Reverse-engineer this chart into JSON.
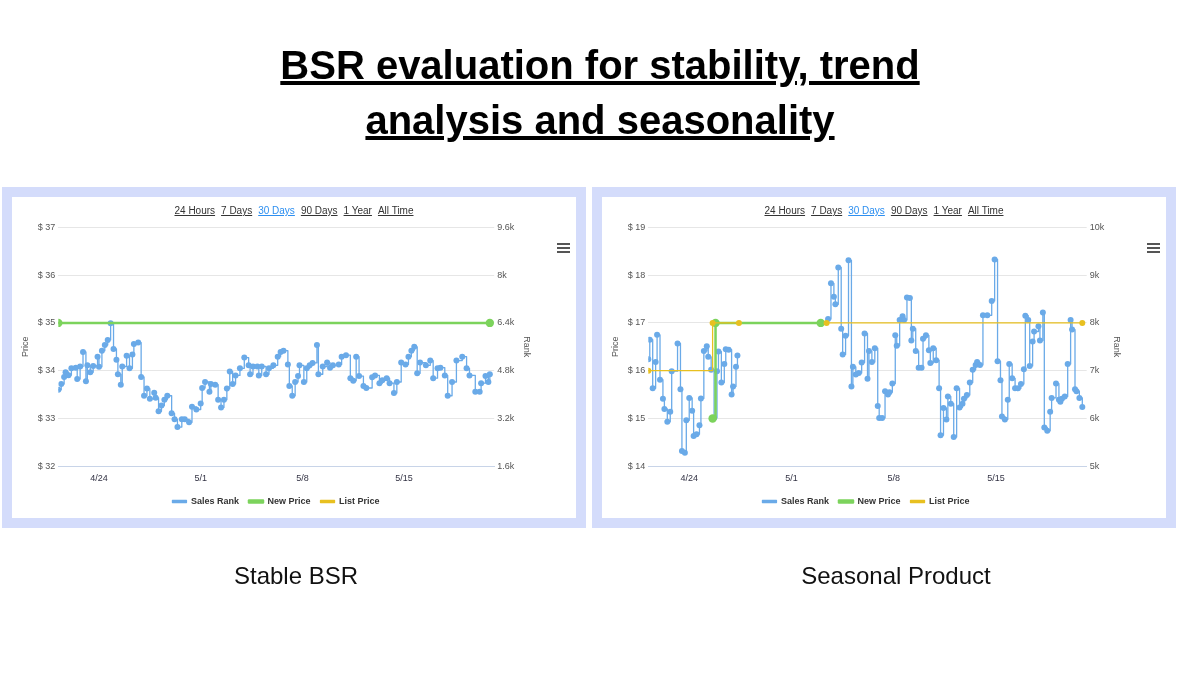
{
  "chart_data": [
    {
      "type": "step",
      "title": "BSR evaluation for stability, trend analysis and seasonality",
      "subtitle": "Stable BSR",
      "annotations": [
        "24 Hours",
        "7 Days",
        "30 Days",
        "90 Days",
        "1 Year",
        "All Time"
      ],
      "ylabel": "Price",
      "y2label": "Rank",
      "xlim": [
        "--04-21T04:48",
        "--05-21T04:48"
      ],
      "xticks": [
        {
          "value": "--04-24",
          "label": "4/24"
        },
        {
          "value": "--05-01",
          "label": "5/1"
        },
        {
          "value": "--05-08",
          "label": "5/8"
        },
        {
          "value": "--05-15",
          "label": "5/15"
        }
      ],
      "ylim": [
        32,
        37
      ],
      "yticks": [
        {
          "value": 32,
          "label": "$ 32"
        },
        {
          "value": 33,
          "label": "$ 33"
        },
        {
          "value": 34,
          "label": "$ 34"
        },
        {
          "value": 35,
          "label": "$ 35"
        },
        {
          "value": 36,
          "label": "$ 36"
        },
        {
          "value": 37,
          "label": "$ 37"
        }
      ],
      "y2lim": [
        1600,
        9600
      ],
      "y2ticks": [
        {
          "value": 1600,
          "label": "1.6k"
        },
        {
          "value": 3200,
          "label": "3.2k"
        },
        {
          "value": 4800,
          "label": "4.8k"
        },
        {
          "value": 6400,
          "label": "6.4k"
        },
        {
          "value": 8000,
          "label": "8k"
        },
        {
          "value": 9600,
          "label": "9.6k"
        }
      ],
      "grid": "y",
      "legend": "bottom",
      "marker": "circle",
      "series": [
        {
          "name": "Sales Rank",
          "color": "#6aaae8",
          "axis": "y2",
          "x": [
            "--04-21T04:48",
            "--04-21T09:36",
            "--04-21T14:24",
            "--04-21T16:48",
            "--04-21T21:36",
            "--04-22T02:24",
            "--04-22T09:36",
            "--04-22T12:00",
            "--04-22T16:48",
            "--04-22T21:36",
            "--04-23T02:24",
            "--04-23T04:48",
            "--04-23T09:36",
            "--04-23T14:24",
            "--04-23T21:36",
            "--04-24T00:00",
            "--04-24T04:48",
            "--04-24T09:36",
            "--04-24T14:24",
            "--04-24T19:12",
            "--04-25T00:00",
            "--04-25T04:48",
            "--04-25T07:12",
            "--04-25T12:00",
            "--04-25T14:24",
            "--04-25T21:36",
            "--04-26T02:24",
            "--04-26T07:12",
            "--04-26T09:36",
            "--04-26T16:48",
            "--04-26T21:36",
            "--04-27T02:24",
            "--04-27T07:12",
            "--04-27T12:00",
            "--04-27T19:12",
            "--04-27T21:36",
            "--04-28T02:24",
            "--04-28T07:12",
            "--04-28T12:00",
            "--04-28T16:48",
            "--04-29T00:00",
            "--04-29T04:48",
            "--04-29T09:36",
            "--04-29T16:48",
            "--04-29T21:36",
            "--04-30T04:48",
            "--04-30T09:36",
            "--04-30T16:48",
            "--05-01T00:00",
            "--05-01T02:24",
            "--05-01T07:12",
            "--05-01T14:24",
            "--05-01T16:48",
            "--05-02T00:00",
            "--05-02T04:48",
            "--05-02T09:36",
            "--05-02T14:24",
            "--05-02T19:12",
            "--05-03T00:00",
            "--05-03T04:48",
            "--05-03T09:36",
            "--05-03T16:48",
            "--05-04T00:00",
            "--05-04T07:12",
            "--05-04T09:36",
            "--05-04T14:24",
            "--05-04T21:36",
            "--05-05T00:00",
            "--05-05T04:48",
            "--05-05T12:00",
            "--05-05T16:48",
            "--05-06T00:00",
            "--05-06T07:12",
            "--05-06T12:00",
            "--05-06T16:48",
            "--05-07T00:00",
            "--05-07T02:24",
            "--05-07T07:12",
            "--05-07T12:00",
            "--05-07T16:48",
            "--05-07T19:12",
            "--05-08T02:24",
            "--05-08T07:12",
            "--05-08T12:00",
            "--05-08T16:48",
            "--05-09T00:00",
            "--05-09T02:24",
            "--05-09T09:36",
            "--05-09T16:48",
            "--05-09T21:36",
            "--05-10T02:24",
            "--05-10T12:00",
            "--05-10T16:48",
            "--05-11T00:00",
            "--05-11T07:12",
            "--05-11T12:00",
            "--05-11T16:48",
            "--05-11T21:36",
            "--05-12T04:48",
            "--05-12T09:36",
            "--05-12T19:12",
            "--05-13T00:00",
            "--05-13T07:12",
            "--05-13T12:00",
            "--05-13T19:12",
            "--05-14T00:00",
            "--05-14T07:12",
            "--05-14T12:00",
            "--05-14T19:12",
            "--05-15T02:24",
            "--05-15T07:12",
            "--05-15T12:00",
            "--05-15T16:48",
            "--05-15T21:36",
            "--05-16T02:24",
            "--05-16T12:00",
            "--05-16T19:12",
            "--05-17T00:00",
            "--05-17T07:12",
            "--05-17T12:00",
            "--05-17T19:12",
            "--05-18T00:00",
            "--05-18T07:12",
            "--05-18T14:24",
            "--05-19T00:00",
            "--05-19T07:12",
            "--05-19T12:00",
            "--05-19T21:36",
            "--05-20T04:48",
            "--05-20T07:12",
            "--05-20T14:24",
            "--05-20T19:12",
            "--05-20T21:36"
          ],
          "values": [
            4160,
            4350,
            4590,
            4750,
            4650,
            4880,
            4900,
            4520,
            4940,
            5430,
            4450,
            4980,
            4750,
            4960,
            5270,
            4930,
            5470,
            5660,
            5830,
            6390,
            5530,
            5170,
            4680,
            4330,
            4940,
            5300,
            4880,
            5340,
            5690,
            5740,
            4590,
            3960,
            4200,
            3860,
            4060,
            3890,
            3440,
            3630,
            3830,
            3960,
            3370,
            3170,
            2910,
            3170,
            3170,
            3070,
            3590,
            3500,
            3700,
            4220,
            4420,
            4090,
            4350,
            4330,
            3830,
            3570,
            3830,
            4200,
            4770,
            4350,
            4640,
            4880,
            5240,
            4980,
            4680,
            4940,
            4940,
            4640,
            4940,
            4680,
            4880,
            4980,
            5270,
            5430,
            5470,
            5010,
            4290,
            3960,
            4420,
            4620,
            4980,
            4420,
            4880,
            4980,
            5060,
            5660,
            4680,
            4940,
            5070,
            4900,
            4980,
            5010,
            5270,
            5320,
            4550,
            4460,
            5270,
            4620,
            4290,
            4220,
            4580,
            4640,
            4380,
            4480,
            4550,
            4380,
            4050,
            4420,
            5070,
            5010,
            5270,
            5470,
            5600,
            4710,
            5070,
            4980,
            5140,
            4550,
            4880,
            4900,
            4640,
            3960,
            4420,
            5140,
            5270,
            4880,
            4640,
            4090,
            4090,
            4380,
            4620,
            4420,
            4680
          ]
        },
        {
          "name": "New Price",
          "color": "#7cd35c",
          "x": [
            "--04-21T04:48",
            "--05-20T21:36"
          ],
          "values": [
            35,
            35
          ]
        },
        {
          "name": "List Price",
          "color": "#e8c020"
        }
      ]
    },
    {
      "type": "step",
      "subtitle": "Seasonal Product",
      "annotations": [
        "24 Hours",
        "7 Days",
        "30 Days",
        "90 Days",
        "1 Year",
        "All Time"
      ],
      "ylabel": "Price",
      "y2label": "Rank",
      "xlim": [
        "--04-21T04:48",
        "--05-21T04:48"
      ],
      "xticks": [
        {
          "value": "--04-24",
          "label": "4/24"
        },
        {
          "value": "--05-01",
          "label": "5/1"
        },
        {
          "value": "--05-08",
          "label": "5/8"
        },
        {
          "value": "--05-15",
          "label": "5/15"
        }
      ],
      "ylim": [
        14,
        19
      ],
      "yticks": [
        {
          "value": 14,
          "label": "$ 14"
        },
        {
          "value": 15,
          "label": "$ 15"
        },
        {
          "value": 16,
          "label": "$ 16"
        },
        {
          "value": 17,
          "label": "$ 17"
        },
        {
          "value": 18,
          "label": "$ 18"
        },
        {
          "value": 19,
          "label": "$ 19"
        }
      ],
      "y2lim": [
        5000,
        10000
      ],
      "y2ticks": [
        {
          "value": 5000,
          "label": "5k"
        },
        {
          "value": 6000,
          "label": "6k"
        },
        {
          "value": 7000,
          "label": "7k"
        },
        {
          "value": 8000,
          "label": "8k"
        },
        {
          "value": 9000,
          "label": "9k"
        },
        {
          "value": 10000,
          "label": "10k"
        }
      ],
      "grid": "y",
      "legend": "bottom",
      "marker": "circle",
      "series": [
        {
          "name": "Sales Rank",
          "color": "#6aaae8",
          "axis": "y2",
          "x": [
            "--04-21T04:48",
            "--04-21T07:12",
            "--04-21T12:00",
            "--04-21T16:48",
            "--04-21T19:12",
            "--04-22T00:00",
            "--04-22T04:48",
            "--04-22T07:12",
            "--04-22T12:00",
            "--04-22T16:48",
            "--04-22T19:12",
            "--04-23T04:48",
            "--04-23T09:36",
            "--04-23T12:00",
            "--04-23T16:48",
            "--04-23T19:12",
            "--04-24T00:00",
            "--04-24T04:48",
            "--04-24T07:12",
            "--04-24T12:00",
            "--04-24T16:48",
            "--04-24T19:12",
            "--04-25T00:00",
            "--04-25T04:48",
            "--04-25T07:12",
            "--04-25T12:00",
            "--04-25T16:48",
            "--04-25T21:36",
            "--04-26T00:00",
            "--04-26T04:48",
            "--04-26T09:36",
            "--04-26T12:00",
            "--04-26T16:48",
            "--04-26T21:36",
            "--04-27T00:00",
            "--04-27T04:48",
            "--04-27T07:12",
            "--04-30T00:00",
            "--05-03T12:00",
            "--05-03T16:48",
            "--05-03T21:36",
            "--05-04T00:00",
            "--05-04T04:48",
            "--05-04T09:36",
            "--05-04T12:00",
            "--05-04T16:48",
            "--05-04T21:36",
            "--05-05T02:24",
            "--05-05T04:48",
            "--05-05T09:36",
            "--05-05T14:24",
            "--05-05T19:12",
            "--05-06T00:00",
            "--05-06T04:48",
            "--05-06T07:12",
            "--05-06T12:00",
            "--05-06T16:48",
            "--05-06T21:36",
            "--05-07T00:00",
            "--05-07T04:48",
            "--05-07T09:36",
            "--05-07T14:24",
            "--05-07T16:48",
            "--05-07T21:36",
            "--05-08T02:24",
            "--05-08T04:48",
            "--05-08T09:36",
            "--05-08T14:24",
            "--05-08T16:48",
            "--05-08T21:36",
            "--05-09T02:24",
            "--05-09T04:48",
            "--05-09T07:12",
            "--05-09T12:00",
            "--05-09T16:48",
            "--05-09T21:36",
            "--05-10T00:00",
            "--05-10T04:48",
            "--05-10T09:36",
            "--05-10T12:00",
            "--05-10T16:48",
            "--05-10T21:36",
            "--05-11T02:24",
            "--05-11T04:48",
            "--05-11T09:36",
            "--05-11T14:24",
            "--05-11T16:48",
            "--05-11T21:36",
            "--05-12T02:24",
            "--05-12T07:12",
            "--05-12T12:00",
            "--05-12T16:48",
            "--05-12T19:12",
            "--05-13T00:00",
            "--05-13T04:48",
            "--05-13T09:36",
            "--05-13T14:24",
            "--05-13T16:48",
            "--05-13T21:36",
            "--05-14T02:24",
            "--05-14T09:36",
            "--05-14T16:48",
            "--05-14T21:36",
            "--05-15T02:24",
            "--05-15T07:12",
            "--05-15T09:36",
            "--05-15T14:24",
            "--05-15T19:12",
            "--05-15T21:36",
            "--05-16T02:24",
            "--05-16T07:12",
            "--05-16T12:00",
            "--05-16T16:48",
            "--05-16T21:36",
            "--05-17T00:00",
            "--05-17T04:48",
            "--05-17T07:12",
            "--05-17T12:00",
            "--05-17T14:24",
            "--05-17T21:36",
            "--05-18T00:00",
            "--05-18T04:48",
            "--05-18T07:12",
            "--05-18T12:00",
            "--05-18T16:48",
            "--05-18T19:12",
            "--05-19T02:24",
            "--05-19T07:12",
            "--05-19T09:36",
            "--05-19T12:00",
            "--05-19T16:48",
            "--05-19T21:36",
            "--05-20T02:24",
            "--05-20T04:48",
            "--05-20T09:36",
            "--05-20T12:00",
            "--05-20T16:48",
            "--05-20T21:36"
          ],
          "values": [
            7240,
            7650,
            6630,
            7180,
            7750,
            6810,
            6410,
            6200,
            5930,
            6140,
            6990,
            7570,
            6610,
            5320,
            5280,
            5960,
            6430,
            6160,
            5630,
            5670,
            5860,
            6420,
            7410,
            7510,
            7290,
            7020,
            6010,
            6990,
            7400,
            6750,
            7140,
            7450,
            7440,
            6500,
            6670,
            7080,
            7320,
            null,
            8080,
            8830,
            8550,
            8390,
            9160,
            7880,
            7340,
            7730,
            9310,
            6670,
            7080,
            6920,
            6950,
            7170,
            7780,
            6830,
            7410,
            7180,
            7470,
            6260,
            6010,
            6010,
            6570,
            6500,
            6550,
            6730,
            7740,
            7520,
            8060,
            8140,
            8060,
            8530,
            8520,
            7630,
            7880,
            7410,
            7060,
            7060,
            7670,
            7740,
            7430,
            7160,
            7470,
            7220,
            6630,
            5650,
            6220,
            5980,
            6460,
            6310,
            5610,
            6630,
            6230,
            6310,
            6410,
            6490,
            6750,
            7020,
            7120,
            7180,
            7120,
            8160,
            8160,
            8460,
            9330,
            7200,
            6800,
            6040,
            5980,
            6390,
            7140,
            6840,
            6630,
            6630,
            6720,
            7030,
            8150,
            8060,
            7100,
            7610,
            7820,
            7930,
            7630,
            8220,
            5810,
            5740,
            6140,
            6430,
            6730,
            6390,
            6350,
            6410,
            6460,
            7140,
            8060,
            7860,
            6610,
            6570,
            6430,
            6240
          ]
        },
        {
          "name": "New Price",
          "color": "#7cd35c",
          "x": [
            "--04-25T14:24",
            "--04-25T19:12",
            "--05-03T00:00"
          ],
          "values": [
            15,
            17,
            17
          ]
        },
        {
          "name": "List Price",
          "color": "#e8c020",
          "x": [
            "--04-21T04:48",
            "--04-25T14:24",
            "--04-27T09:36",
            "--04-29T00:00",
            "--05-03T09:36",
            "--05-20T21:36"
          ],
          "values": [
            16,
            17,
            17,
            null,
            17,
            17
          ]
        }
      ]
    }
  ]
}
